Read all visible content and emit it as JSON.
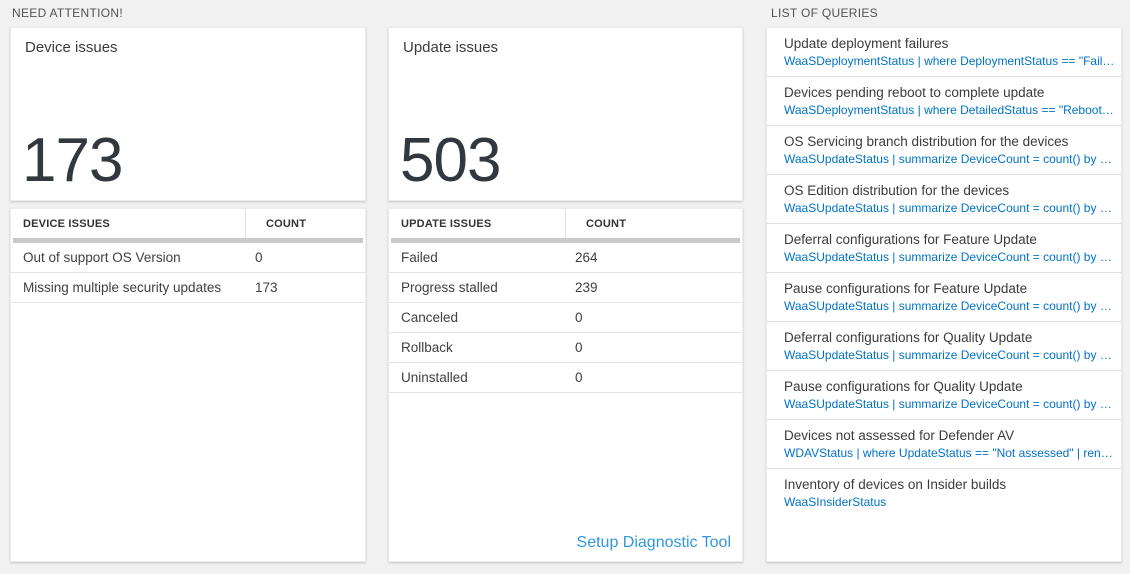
{
  "need_attention": {
    "section_title": "NEED ATTENTION!",
    "device": {
      "card_title": "Device issues",
      "big_number": "173",
      "table": {
        "headers": [
          "DEVICE ISSUES",
          "COUNT"
        ],
        "rows": [
          {
            "label": "Out of support OS Version",
            "count": "0"
          },
          {
            "label": "Missing multiple security updates",
            "count": "173"
          }
        ]
      }
    },
    "update": {
      "card_title": "Update issues",
      "big_number": "503",
      "table": {
        "headers": [
          "UPDATE ISSUES",
          "COUNT"
        ],
        "rows": [
          {
            "label": "Failed",
            "count": "264"
          },
          {
            "label": "Progress stalled",
            "count": "239"
          },
          {
            "label": "Canceled",
            "count": "0"
          },
          {
            "label": "Rollback",
            "count": "0"
          },
          {
            "label": "Uninstalled",
            "count": "0"
          }
        ]
      },
      "footer_link": "Setup Diagnostic Tool"
    }
  },
  "queries": {
    "section_title": "LIST OF QUERIES",
    "items": [
      {
        "title": "Update deployment failures",
        "query": "WaaSDeploymentStatus | where DeploymentStatus == \"Failed\" |..."
      },
      {
        "title": "Devices pending reboot to complete update",
        "query": "WaaSDeploymentStatus | where DetailedStatus == \"Reboot pend..."
      },
      {
        "title": "OS Servicing branch distribution for the devices",
        "query": "WaaSUpdateStatus | summarize DeviceCount = count() by OSSer..."
      },
      {
        "title": "OS Edition distribution for the devices",
        "query": "WaaSUpdateStatus | summarize DeviceCount = count() by OSEdit..."
      },
      {
        "title": "Deferral configurations for Feature Update",
        "query": "WaaSUpdateStatus | summarize DeviceCount = count() by Featur..."
      },
      {
        "title": "Pause configurations for Feature Update",
        "query": "WaaSUpdateStatus | summarize DeviceCount = count() by Featur..."
      },
      {
        "title": "Deferral configurations for Quality Update",
        "query": "WaaSUpdateStatus | summarize DeviceCount = count() by Qualit..."
      },
      {
        "title": "Pause configurations for Quality Update",
        "query": "WaaSUpdateStatus | summarize DeviceCount = count() by Qualit..."
      },
      {
        "title": "Devices not assessed for Defender AV",
        "query": "WDAVStatus | where UpdateStatus == \"Not assessed\" | render ta..."
      },
      {
        "title": "Inventory of devices on Insider builds",
        "query": "WaaSInsiderStatus"
      }
    ]
  },
  "colors": {
    "background": "#f1f1f1",
    "query_blue": "#0072c6",
    "link_blue": "#3398db",
    "big_number": "#32383e",
    "header_bar_gray": "#c9c9c9"
  }
}
